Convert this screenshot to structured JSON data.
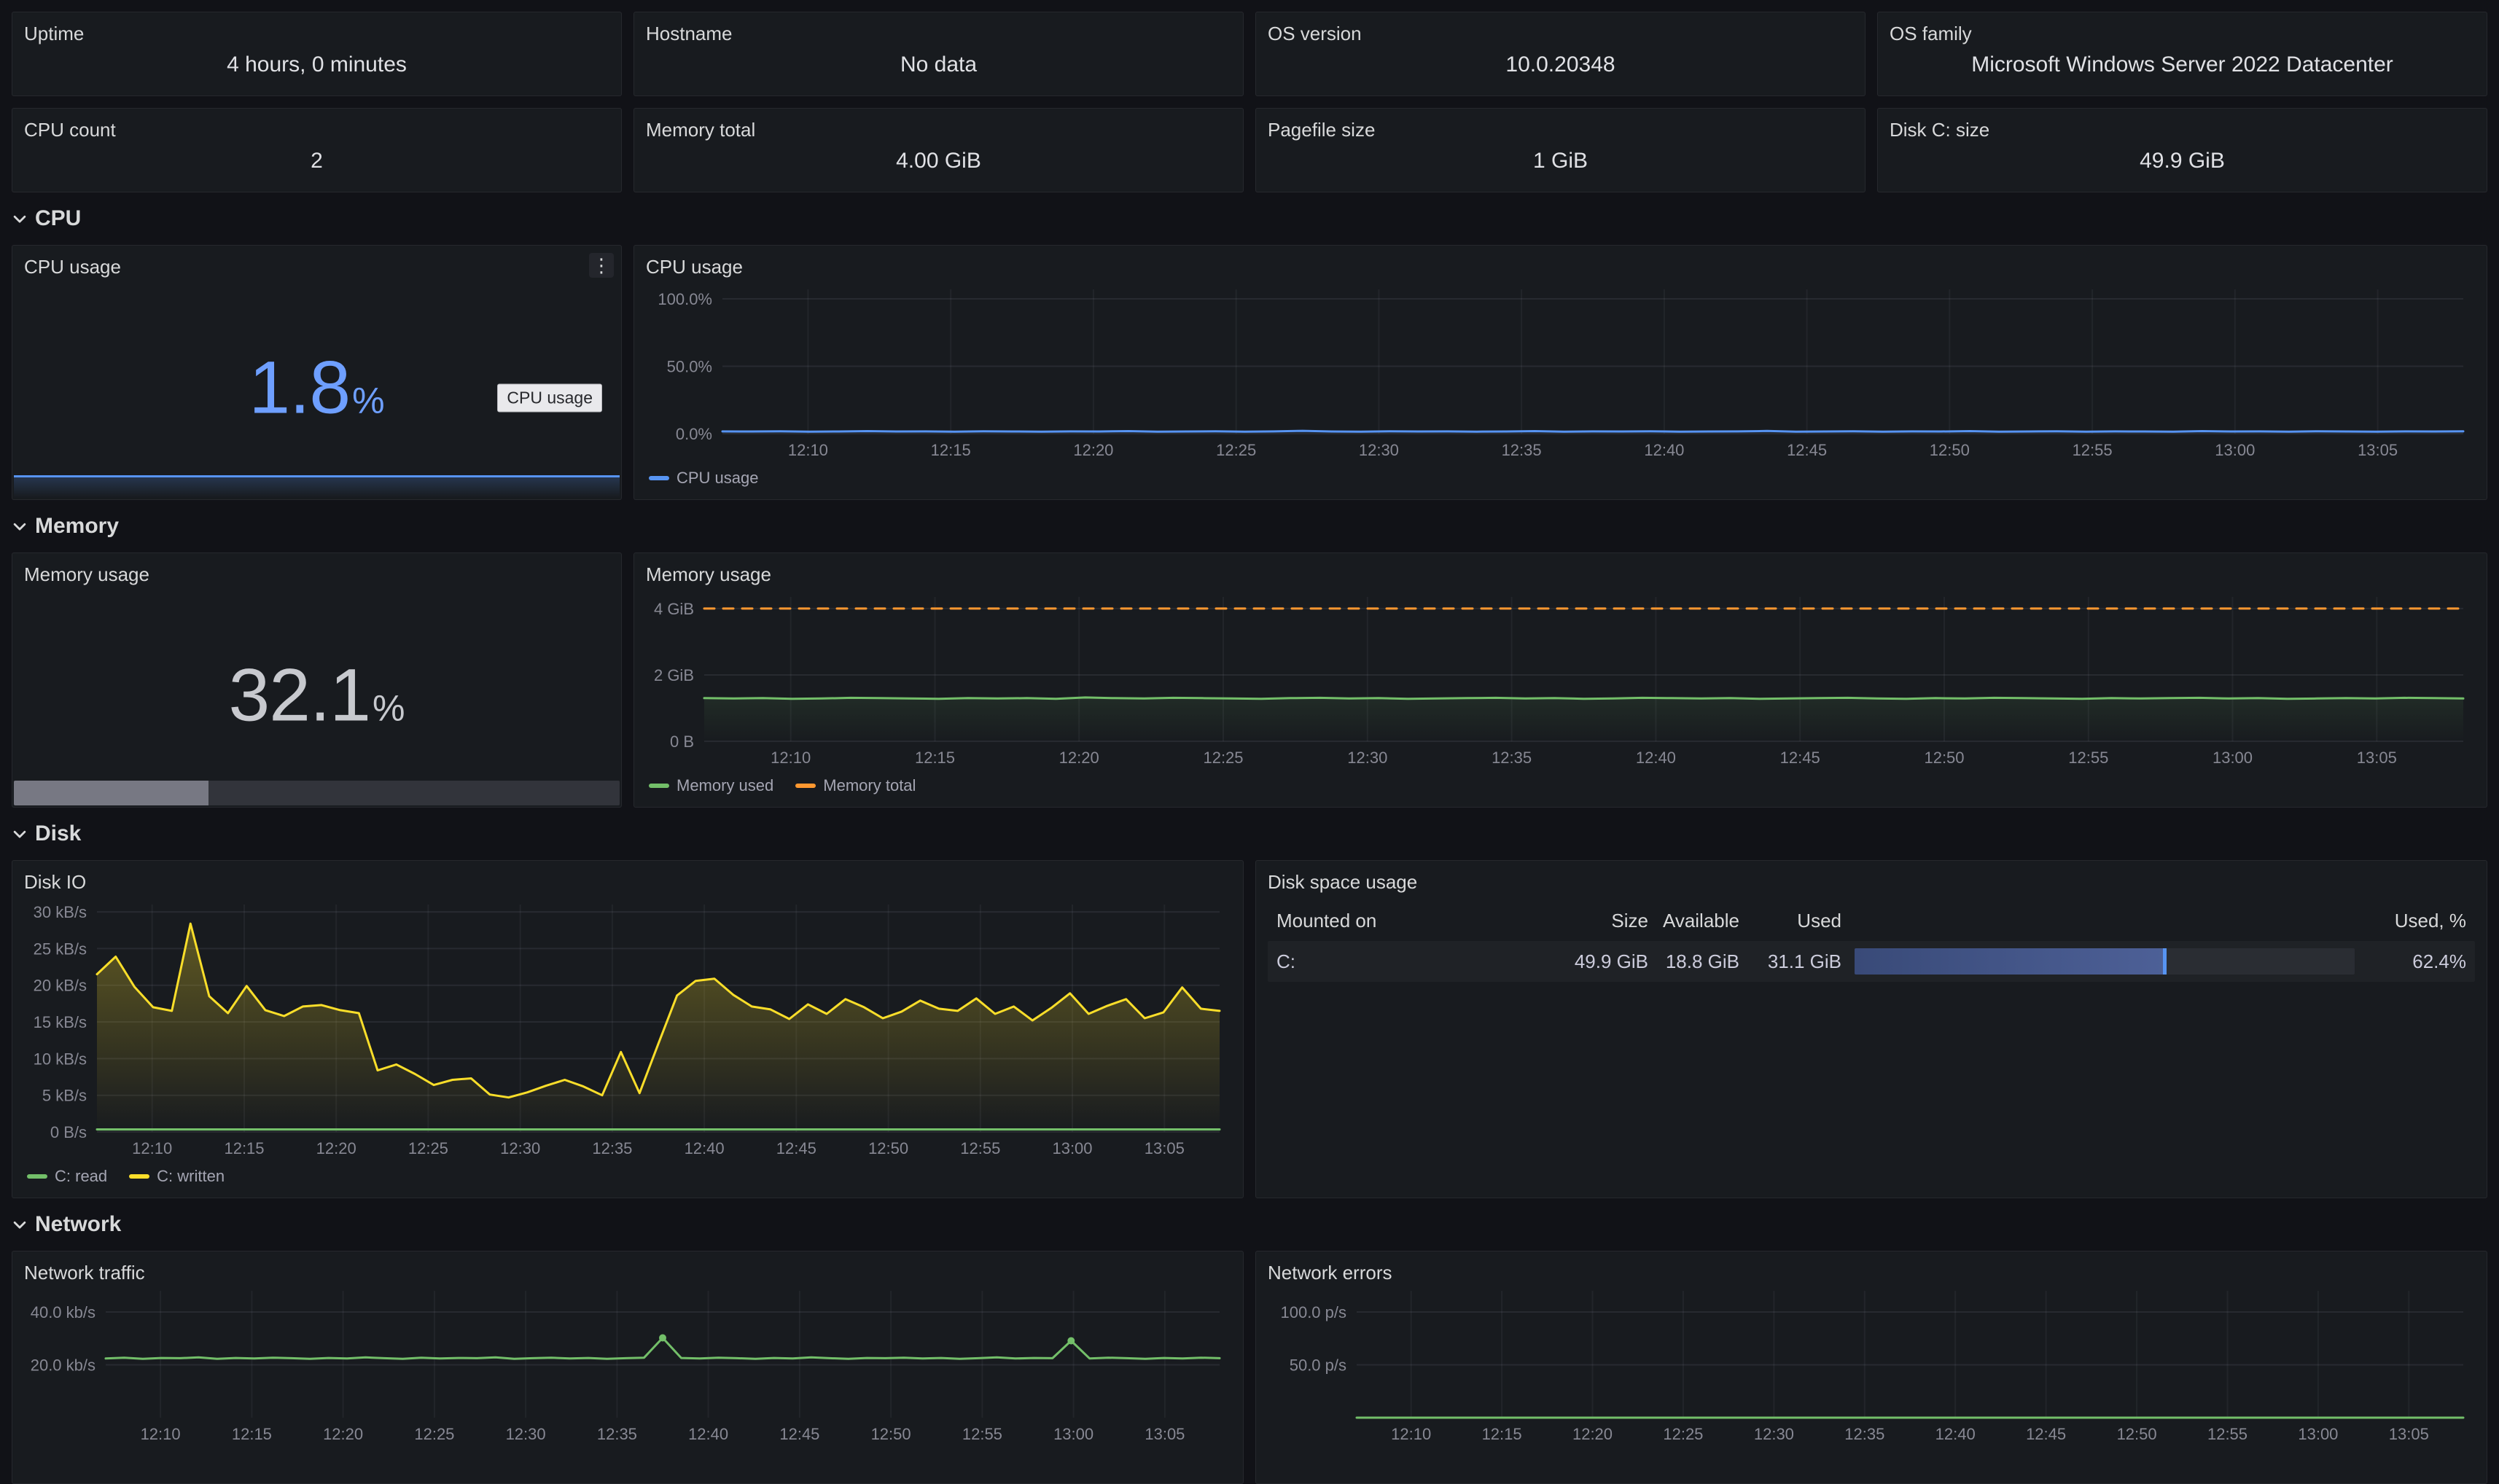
{
  "colors": {
    "page_bg": "#111217",
    "panel_bg": "#181b1f",
    "title_text": "#d8d9da",
    "stat_blue": "#6e9fff",
    "stat_gray": "#c7c9ce",
    "series_blue": "#5794f2",
    "series_green": "#73bf69",
    "series_yellow": "#fade2a",
    "series_orange": "#ff9830",
    "gauge_cap": "#5794f2"
  },
  "top_stats": {
    "row1": [
      {
        "label": "Uptime",
        "value": "4 hours, 0 minutes"
      },
      {
        "label": "Hostname",
        "value": "No data"
      },
      {
        "label": "OS version",
        "value": "10.0.20348"
      },
      {
        "label": "OS family",
        "value": "Microsoft Windows Server 2022 Datacenter"
      }
    ],
    "row2": [
      {
        "label": "CPU count",
        "value": "2"
      },
      {
        "label": "Memory total",
        "value": "4.00 GiB"
      },
      {
        "label": "Pagefile size",
        "value": "1 GiB"
      },
      {
        "label": "Disk C: size",
        "value": "49.9 GiB"
      }
    ]
  },
  "sections": {
    "cpu": {
      "title": "CPU"
    },
    "memory": {
      "title": "Memory"
    },
    "disk": {
      "title": "Disk"
    },
    "network": {
      "title": "Network"
    }
  },
  "cpu_stat_panel": {
    "title": "CPU usage",
    "value": "1.8",
    "unit": "%",
    "tooltip": "CPU usage",
    "kebab_icon": "⋮"
  },
  "memory_stat_panel": {
    "title": "Memory usage",
    "value": "32.1",
    "unit": "%",
    "percent": 32.1
  },
  "disk_table": {
    "title": "Disk space usage",
    "headers": {
      "mounted": "Mounted on",
      "size": "Size",
      "available": "Available",
      "used": "Used",
      "used_pct": "Used, %"
    },
    "rows": [
      {
        "mounted": "C:",
        "size": "49.9 GiB",
        "available": "18.8 GiB",
        "used": "31.1 GiB",
        "used_pct": 62.4,
        "used_pct_label": "62.4%"
      }
    ]
  },
  "time_axis": {
    "minutes": [
      3,
      8,
      13,
      18,
      23,
      28,
      33,
      38,
      43,
      48,
      53,
      58
    ],
    "labels": [
      "12:10",
      "12:15",
      "12:20",
      "12:25",
      "12:30",
      "12:35",
      "12:40",
      "12:45",
      "12:50",
      "12:55",
      "13:00",
      "13:05"
    ]
  },
  "chart_data": [
    {
      "id": "cpu_usage_chart",
      "type": "line",
      "title": "CPU usage",
      "xlim": [
        0,
        61
      ],
      "x_ticks": "default",
      "ylim": [
        0,
        107
      ],
      "pad_left": 105,
      "show_legend": true,
      "y_ticks": [
        {
          "v": 0,
          "label": "0.0%"
        },
        {
          "v": 50,
          "label": "50.0%"
        },
        {
          "v": 100,
          "label": "100.0%"
        }
      ],
      "series": [
        {
          "name": "CPU usage",
          "color": "#5794f2",
          "width": 3,
          "fill_opacity": 0.12,
          "values": [
            1.7,
            1.6,
            1.8,
            1.5,
            1.6,
            1.9,
            1.6,
            1.7,
            1.5,
            1.8,
            1.6,
            1.5,
            1.7,
            1.6,
            1.9,
            1.5,
            1.6,
            1.8,
            1.5,
            1.7,
            2.1,
            1.6,
            1.5,
            1.8,
            1.6,
            1.7,
            1.5,
            1.6,
            1.9,
            1.5,
            1.7,
            1.6,
            1.8,
            1.5,
            1.6,
            1.7,
            2.0,
            1.5,
            1.6,
            1.8,
            1.5,
            1.7,
            1.6,
            1.9,
            1.5,
            1.6,
            1.8,
            1.5,
            1.7,
            1.6,
            1.5,
            1.9,
            1.6,
            1.7,
            1.5,
            1.8,
            1.6,
            1.5,
            1.7,
            1.6,
            1.8
          ]
        }
      ]
    },
    {
      "id": "memory_usage_chart",
      "type": "line",
      "title": "Memory usage",
      "xlim": [
        0,
        61
      ],
      "x_ticks": "default",
      "ylim": [
        0,
        4.35
      ],
      "pad_left": 80,
      "show_legend": true,
      "y_ticks": [
        {
          "v": 0,
          "label": "0 B"
        },
        {
          "v": 2,
          "label": "2 GiB"
        },
        {
          "v": 4,
          "label": "4 GiB"
        }
      ],
      "series": [
        {
          "name": "Memory used",
          "color": "#73bf69",
          "width": 3,
          "fill_opacity": 0.1,
          "values": [
            1.3,
            1.29,
            1.3,
            1.28,
            1.29,
            1.31,
            1.3,
            1.29,
            1.28,
            1.3,
            1.29,
            1.3,
            1.28,
            1.32,
            1.3,
            1.29,
            1.31,
            1.3,
            1.29,
            1.28,
            1.3,
            1.31,
            1.29,
            1.3,
            1.28,
            1.29,
            1.3,
            1.31,
            1.29,
            1.3,
            1.28,
            1.29,
            1.31,
            1.3,
            1.29,
            1.3,
            1.28,
            1.29,
            1.3,
            1.31,
            1.29,
            1.28,
            1.3,
            1.29,
            1.31,
            1.3,
            1.29,
            1.28,
            1.3,
            1.29,
            1.3,
            1.31,
            1.29,
            1.3,
            1.28,
            1.29,
            1.3,
            1.29,
            1.31,
            1.3,
            1.29
          ]
        },
        {
          "name": "Memory total",
          "color": "#ff9830",
          "width": 3,
          "dash": "14 12",
          "constant": 4.0
        }
      ]
    },
    {
      "id": "disk_io_chart",
      "type": "line",
      "title": "Disk IO",
      "xlim": [
        0,
        61
      ],
      "x_ticks": "default",
      "ylim": [
        0,
        31
      ],
      "pad_left": 100,
      "show_legend": true,
      "y_ticks": [
        {
          "v": 0,
          "label": "0 B/s"
        },
        {
          "v": 5,
          "label": "5 kB/s"
        },
        {
          "v": 10,
          "label": "10 kB/s"
        },
        {
          "v": 15,
          "label": "15 kB/s"
        },
        {
          "v": 20,
          "label": "20 kB/s"
        },
        {
          "v": 25,
          "label": "25 kB/s"
        },
        {
          "v": 30,
          "label": "30 kB/s"
        }
      ],
      "series": [
        {
          "name": "C: read",
          "color": "#73bf69",
          "width": 3,
          "fill_opacity": 0.15,
          "constant": 0.35
        },
        {
          "name": "C: written",
          "color": "#fade2a",
          "width": 3,
          "fill_opacity": 0.32,
          "values": [
            21.5,
            23.9,
            19.8,
            17.0,
            16.5,
            28.4,
            18.5,
            16.2,
            19.9,
            16.6,
            15.8,
            17.1,
            17.3,
            16.6,
            16.2,
            8.4,
            9.2,
            7.9,
            6.4,
            7.1,
            7.3,
            5.1,
            4.7,
            5.4,
            6.3,
            7.1,
            6.2,
            5.0,
            10.9,
            5.3,
            12.0,
            18.6,
            20.6,
            20.9,
            18.7,
            17.1,
            16.7,
            15.4,
            17.4,
            16.1,
            18.1,
            17.0,
            15.5,
            16.4,
            17.9,
            16.8,
            16.5,
            18.2,
            16.1,
            17.1,
            15.2,
            16.9,
            18.9,
            16.1,
            17.2,
            18.1,
            15.5,
            16.3,
            19.7,
            16.8,
            16.5
          ]
        }
      ]
    },
    {
      "id": "network_traffic_chart",
      "type": "line",
      "title": "Network traffic",
      "xlim": [
        0,
        61
      ],
      "x_ticks": "default",
      "ylim": [
        0,
        48
      ],
      "pad_left": 112,
      "pad_top": 8,
      "show_legend": false,
      "y_ticks": [
        {
          "v": 20,
          "label": "20.0 kb/s"
        },
        {
          "v": 40,
          "label": "40.0 kb/s"
        }
      ],
      "series": [
        {
          "name": "",
          "color": "#73bf69",
          "width": 3,
          "markers": [
            30,
            52
          ],
          "values": [
            22.4,
            22.7,
            22.3,
            22.6,
            22.5,
            22.8,
            22.3,
            22.6,
            22.4,
            22.7,
            22.5,
            22.3,
            22.6,
            22.4,
            22.8,
            22.5,
            22.3,
            22.7,
            22.4,
            22.6,
            22.5,
            22.8,
            22.3,
            22.5,
            22.7,
            22.4,
            22.6,
            22.3,
            22.5,
            22.7,
            30.2,
            22.6,
            22.4,
            22.7,
            22.5,
            22.3,
            22.6,
            22.4,
            22.8,
            22.5,
            22.3,
            22.6,
            22.5,
            22.7,
            22.4,
            22.6,
            22.3,
            22.5,
            22.8,
            22.4,
            22.6,
            22.5,
            29.1,
            22.4,
            22.7,
            22.5,
            22.3,
            22.6,
            22.4,
            22.7,
            22.5
          ]
        }
      ]
    },
    {
      "id": "network_errors_chart",
      "type": "line",
      "title": "Network errors",
      "xlim": [
        0,
        61
      ],
      "x_ticks": "default",
      "ylim": [
        0,
        120
      ],
      "pad_left": 122,
      "pad_top": 8,
      "show_legend": false,
      "y_ticks": [
        {
          "v": 50,
          "label": "50.0 p/s"
        },
        {
          "v": 100,
          "label": "100.0 p/s"
        }
      ],
      "series": [
        {
          "name": "",
          "color": "#73bf69",
          "width": 3,
          "constant": 0
        }
      ]
    }
  ]
}
